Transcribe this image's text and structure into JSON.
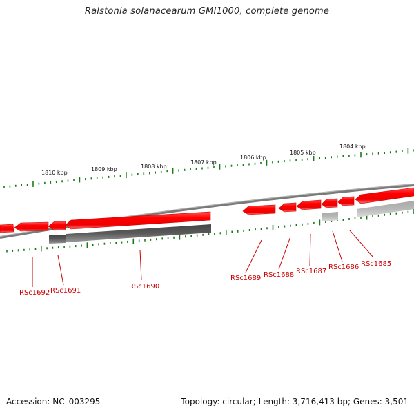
{
  "title": "Ralstonia solanacearum GMI1000, complete genome",
  "footer": {
    "accession_label": "Accession:",
    "accession": "NC_003295",
    "topology_label": "Topology:",
    "topology": "circular",
    "length_label": "Length:",
    "length": "3,716,413 bp",
    "genes_label": "Genes:",
    "genes": "3,501"
  },
  "colors": {
    "gene_red": "#ff0000",
    "gene_red_dark": "#cc0000",
    "gene_red_light": "#ff6666",
    "gray_dark": "#555555",
    "gray_light": "#b4b4b4",
    "backbone": "#888888",
    "tick_green": "#1a7a1a",
    "label_red": "#cc0000"
  },
  "scale": {
    "labels": [
      {
        "text": "1810 kbp",
        "kbp": 1810
      },
      {
        "text": "1809 kbp",
        "kbp": 1809
      },
      {
        "text": "1808 kbp",
        "kbp": 1808
      },
      {
        "text": "1807 kbp",
        "kbp": 1807
      },
      {
        "text": "1806 kbp",
        "kbp": 1806
      },
      {
        "text": "1805 kbp",
        "kbp": 1805
      },
      {
        "text": "1804 kbp",
        "kbp": 1804
      }
    ]
  },
  "gene_labels": [
    {
      "id": "rsc1692",
      "text": "RSc1692"
    },
    {
      "id": "rsc1691",
      "text": "RSc1691"
    },
    {
      "id": "rsc1690",
      "text": "RSc1690"
    },
    {
      "id": "rsc1689",
      "text": "RSc1689"
    },
    {
      "id": "rsc1688",
      "text": "RSc1688"
    },
    {
      "id": "rsc1687",
      "text": "RSc1687"
    },
    {
      "id": "rsc1686",
      "text": "RSc1686"
    },
    {
      "id": "rsc1685",
      "text": "RSc1685"
    }
  ]
}
